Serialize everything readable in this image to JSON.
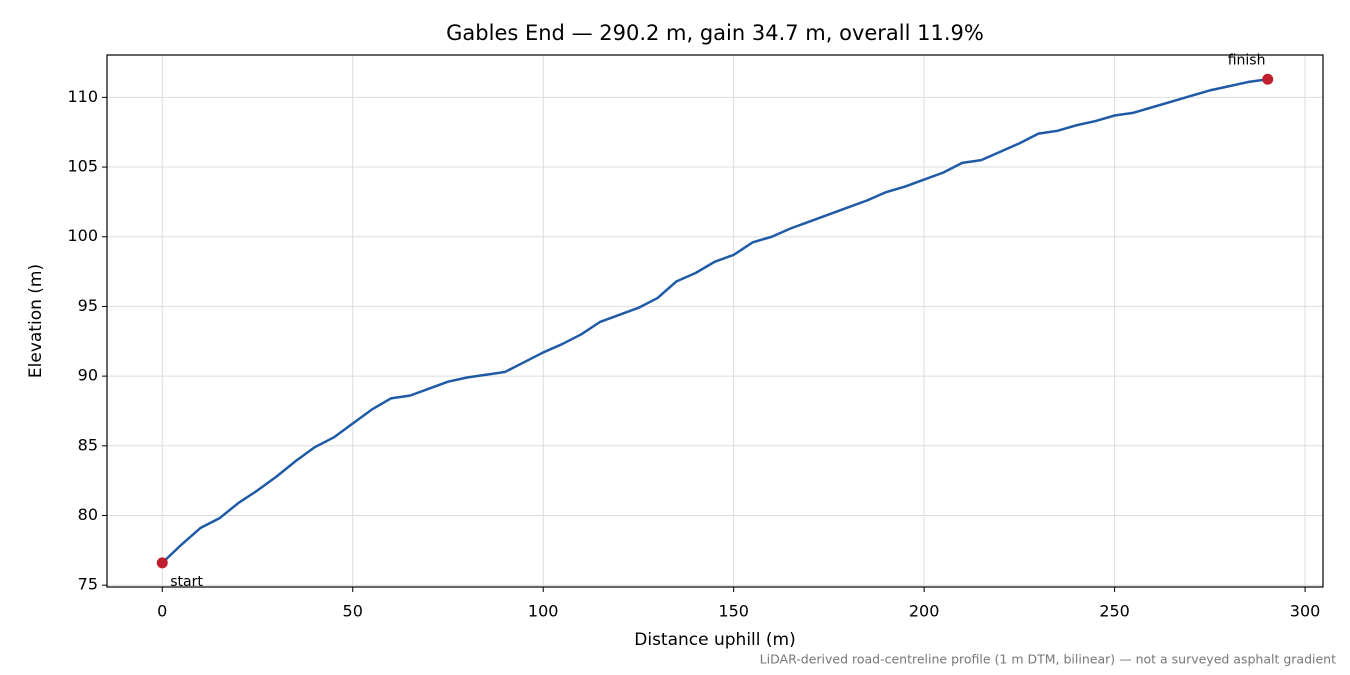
{
  "chart_data": {
    "type": "line",
    "title": "Gables End — 290.2 m, gain 34.7 m, overall 11.9%",
    "xlabel": "Distance uphill (m)",
    "ylabel": "Elevation (m)",
    "footnote": "LiDAR-derived road-centreline profile (1 m DTM, bilinear) — not a surveyed asphalt gradient",
    "x": [
      0,
      5,
      10,
      15,
      20,
      25,
      30,
      35,
      40,
      45,
      50,
      55,
      60,
      65,
      70,
      75,
      80,
      85,
      90,
      95,
      100,
      105,
      110,
      115,
      120,
      125,
      130,
      135,
      140,
      145,
      150,
      155,
      160,
      165,
      170,
      175,
      180,
      185,
      190,
      195,
      200,
      205,
      210,
      215,
      220,
      225,
      230,
      235,
      240,
      245,
      250,
      255,
      260,
      265,
      270,
      275,
      280,
      285,
      290.2
    ],
    "series": [
      {
        "color": "#1f5aa6",
        "values": [
          76.6,
          77.9,
          79.1,
          79.8,
          80.9,
          81.8,
          82.8,
          83.9,
          84.9,
          85.6,
          86.6,
          87.6,
          88.4,
          88.6,
          89.1,
          89.6,
          89.9,
          90.1,
          90.3,
          91.0,
          91.7,
          92.3,
          93.0,
          93.9,
          94.4,
          94.9,
          95.6,
          96.8,
          97.4,
          98.2,
          98.7,
          99.6,
          100.0,
          100.6,
          101.1,
          101.6,
          102.1,
          102.6,
          103.2,
          103.6,
          104.1,
          104.6,
          105.3,
          105.5,
          106.1,
          106.7,
          107.4,
          107.6,
          108.0,
          108.3,
          108.7,
          108.9,
          109.3,
          109.7,
          110.1,
          110.5,
          110.8,
          111.1,
          111.3
        ]
      }
    ],
    "markers": [
      {
        "label": "start",
        "x": 0,
        "y": 76.6
      },
      {
        "label": "finish",
        "x": 290.2,
        "y": 111.3
      }
    ],
    "marker_color": "#c0202e",
    "xlim": [
      -14.51,
      304.71
    ],
    "ylim": [
      74.87,
      113.04
    ],
    "xticks": [
      0,
      50,
      100,
      150,
      200,
      250,
      300
    ],
    "yticks": [
      75,
      80,
      85,
      90,
      95,
      100,
      105,
      110
    ],
    "grid": true
  }
}
